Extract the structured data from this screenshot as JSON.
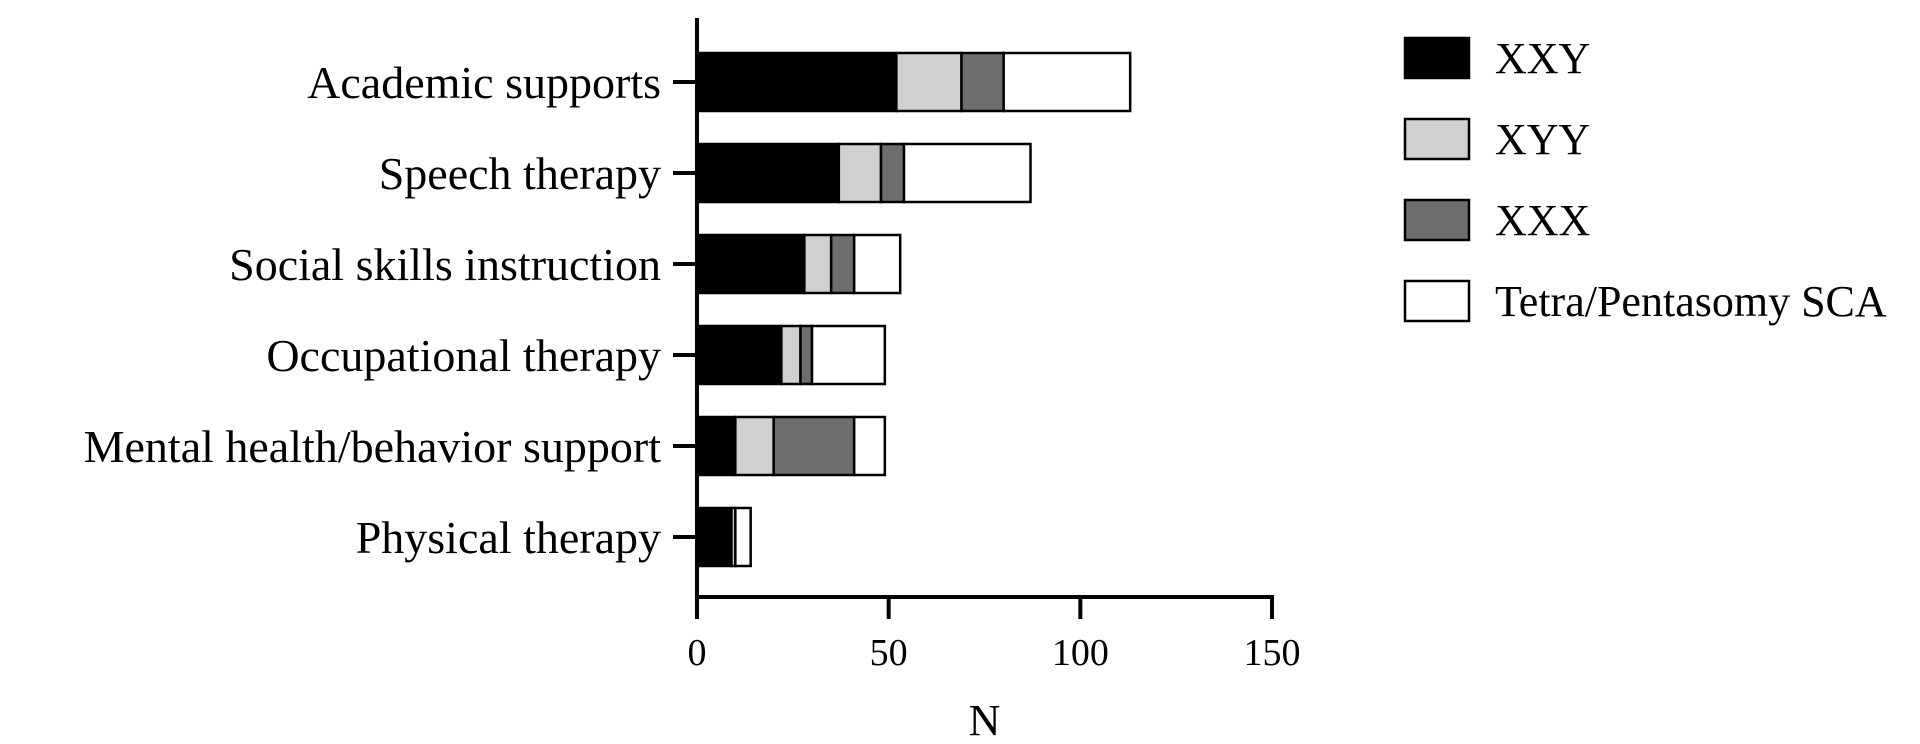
{
  "chart_data": {
    "type": "bar",
    "orientation": "horizontal",
    "stacked": true,
    "title": "",
    "xlabel": "N",
    "ylabel": "",
    "xlim": [
      0,
      150
    ],
    "xticks": [
      0,
      50,
      100,
      150
    ],
    "categories": [
      "Academic supports",
      "Speech therapy",
      "Social skills instruction",
      "Occupational therapy",
      "Mental health/behavior support",
      "Physical therapy"
    ],
    "series": [
      {
        "name": "XXY",
        "color": "#000000",
        "values": [
          52,
          37,
          28,
          22,
          10,
          9
        ]
      },
      {
        "name": "XYY",
        "color": "#d0d0d0",
        "values": [
          17,
          11,
          7,
          5,
          10,
          1
        ]
      },
      {
        "name": "XXX",
        "color": "#6e6e6e",
        "values": [
          11,
          6,
          6,
          3,
          21,
          0
        ]
      },
      {
        "name": "Tetra/Pentasomy SCA",
        "color": "#ffffff",
        "values": [
          33,
          33,
          12,
          19,
          8,
          4
        ]
      }
    ],
    "legend": "right",
    "grid": false
  }
}
